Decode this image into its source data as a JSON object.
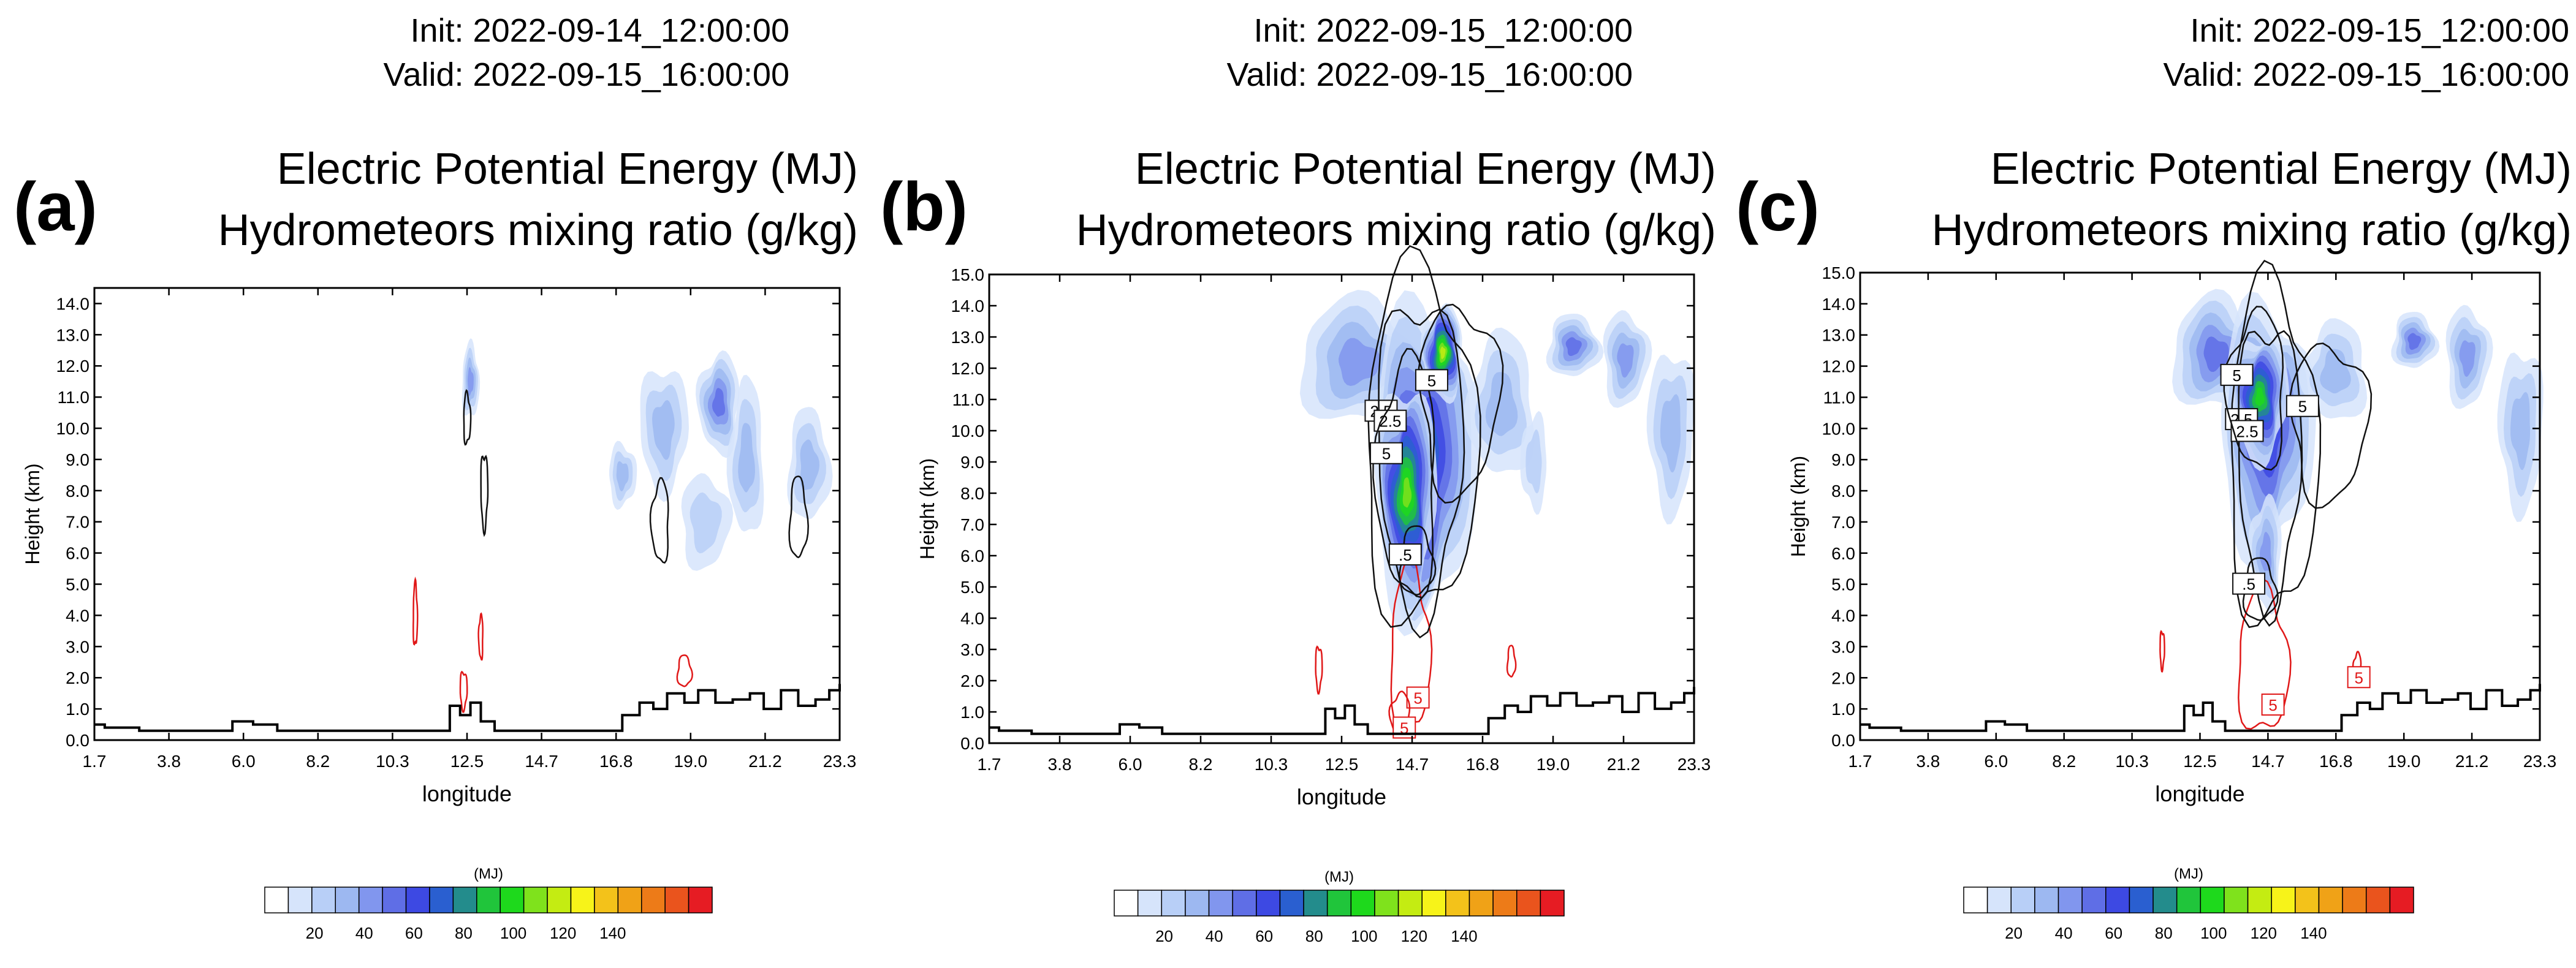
{
  "panels": [
    {
      "label": "(a)",
      "init": "Init: 2022-09-14_12:00:00",
      "valid": "Valid: 2022-09-15_16:00:00",
      "title_line1": "Electric Potential Energy (MJ)",
      "title_line2": "Hydrometeors mixing ratio (g/kg)"
    },
    {
      "label": "(b)",
      "init": "Init: 2022-09-15_12:00:00",
      "valid": "Valid: 2022-09-15_16:00:00",
      "title_line1": "Electric Potential Energy (MJ)",
      "title_line2": "Hydrometeors mixing ratio (g/kg)"
    },
    {
      "label": "(c)",
      "init": "Init: 2022-09-15_12:00:00",
      "valid": "Valid: 2022-09-15_16:00:00",
      "title_line1": "Electric Potential Energy (MJ)",
      "title_line2": "Hydrometeors mixing ratio (g/kg)"
    }
  ],
  "chart_data": [
    {
      "type": "contour",
      "panel": "a",
      "xlabel": "longitude",
      "ylabel": "Height (km)",
      "xticks": [
        "1.7",
        "3.8",
        "6.0",
        "8.2",
        "10.3",
        "12.5",
        "14.7",
        "16.8",
        "19.0",
        "21.2",
        "23.3"
      ],
      "yticks": [
        "0.0",
        "1.0",
        "2.0",
        "3.0",
        "4.0",
        "5.0",
        "6.0",
        "7.0",
        "8.0",
        "9.0",
        "10.0",
        "11.0",
        "12.0",
        "13.0",
        "14.0"
      ],
      "xlim": [
        1.7,
        23.3
      ],
      "ylim": [
        0,
        14.5
      ],
      "shaded": [
        {
          "lon": 12.6,
          "h": 11.5,
          "rx": 0.25,
          "ry": 1.2,
          "level": 4
        },
        {
          "lon": 17.0,
          "h": 8.5,
          "rx": 0.4,
          "ry": 1.0,
          "level": 3
        },
        {
          "lon": 18.2,
          "h": 10.0,
          "rx": 0.7,
          "ry": 2.0,
          "level": 3
        },
        {
          "lon": 19.8,
          "h": 10.8,
          "rx": 0.6,
          "ry": 1.6,
          "level": 5
        },
        {
          "lon": 20.6,
          "h": 9.0,
          "rx": 0.5,
          "ry": 2.5,
          "level": 3
        },
        {
          "lon": 22.4,
          "h": 8.8,
          "rx": 0.6,
          "ry": 1.8,
          "level": 3
        },
        {
          "lon": 19.4,
          "h": 7.0,
          "rx": 0.7,
          "ry": 1.5,
          "level": 2
        }
      ],
      "black_contours": [
        {
          "lon": 12.5,
          "h": 10.3,
          "rx": 0.1,
          "ry": 0.8,
          "label": ""
        },
        {
          "lon": 13.0,
          "h": 8.0,
          "rx": 0.1,
          "ry": 1.2,
          "label": ""
        },
        {
          "lon": 18.1,
          "h": 7.0,
          "rx": 0.25,
          "ry": 1.3,
          "label": ""
        },
        {
          "lon": 22.1,
          "h": 7.1,
          "rx": 0.25,
          "ry": 1.3,
          "label": ""
        }
      ],
      "red_contours": [
        {
          "lon": 11.0,
          "h": 4.0,
          "rx": 0.06,
          "ry": 1.0,
          "label": ""
        },
        {
          "lon": 12.4,
          "h": 1.6,
          "rx": 0.1,
          "ry": 0.6,
          "label": ""
        },
        {
          "lon": 12.9,
          "h": 3.3,
          "rx": 0.06,
          "ry": 0.7,
          "label": ""
        },
        {
          "lon": 18.8,
          "h": 2.2,
          "rx": 0.2,
          "ry": 0.5,
          "label": ""
        }
      ],
      "terrain": [
        [
          1.7,
          0.5
        ],
        [
          2.0,
          0.4
        ],
        [
          3.0,
          0.3
        ],
        [
          4.0,
          0.3
        ],
        [
          5.2,
          0.3
        ],
        [
          5.7,
          0.6
        ],
        [
          6.3,
          0.5
        ],
        [
          7.0,
          0.3
        ],
        [
          8.5,
          0.3
        ],
        [
          10.3,
          0.3
        ],
        [
          11.5,
          0.3
        ],
        [
          12.0,
          1.1
        ],
        [
          12.3,
          0.8
        ],
        [
          12.6,
          1.2
        ],
        [
          12.9,
          0.6
        ],
        [
          13.3,
          0.3
        ],
        [
          14.8,
          0.3
        ],
        [
          16.7,
          0.3
        ],
        [
          17.0,
          0.8
        ],
        [
          17.5,
          1.2
        ],
        [
          17.9,
          1.0
        ],
        [
          18.3,
          1.5
        ],
        [
          18.8,
          1.2
        ],
        [
          19.2,
          1.6
        ],
        [
          19.7,
          1.2
        ],
        [
          20.2,
          1.3
        ],
        [
          20.7,
          1.5
        ],
        [
          21.1,
          1.0
        ],
        [
          21.6,
          1.6
        ],
        [
          22.1,
          1.1
        ],
        [
          22.6,
          1.3
        ],
        [
          23.0,
          1.6
        ],
        [
          23.3,
          1.8
        ]
      ]
    },
    {
      "type": "contour",
      "panel": "b",
      "xlabel": "longitude",
      "ylabel": "Height (km)",
      "xticks": [
        "1.7",
        "3.8",
        "6.0",
        "8.2",
        "10.3",
        "12.5",
        "14.7",
        "16.8",
        "19.0",
        "21.2",
        "23.3"
      ],
      "yticks": [
        "0.0",
        "1.0",
        "2.0",
        "3.0",
        "4.0",
        "5.0",
        "6.0",
        "7.0",
        "8.0",
        "9.0",
        "10.0",
        "11.0",
        "12.0",
        "13.0",
        "14.0",
        "15.0"
      ],
      "xlim": [
        1.7,
        23.3
      ],
      "ylim": [
        0,
        15
      ],
      "shaded": [
        {
          "lon": 13.0,
          "h": 12.2,
          "rx": 1.8,
          "ry": 2.0,
          "level": 4
        },
        {
          "lon": 15.0,
          "h": 9.0,
          "rx": 1.6,
          "ry": 5.0,
          "level": 8
        },
        {
          "lon": 14.5,
          "h": 8.0,
          "rx": 0.9,
          "ry": 3.5,
          "level": 11
        },
        {
          "lon": 15.6,
          "h": 12.5,
          "rx": 0.6,
          "ry": 1.5,
          "level": 12
        },
        {
          "lon": 17.4,
          "h": 10.8,
          "rx": 1.0,
          "ry": 2.3,
          "level": 3
        },
        {
          "lon": 19.6,
          "h": 12.7,
          "rx": 0.8,
          "ry": 1.0,
          "level": 5
        },
        {
          "lon": 21.2,
          "h": 12.3,
          "rx": 0.7,
          "ry": 1.5,
          "level": 4
        },
        {
          "lon": 22.6,
          "h": 10.0,
          "rx": 0.7,
          "ry": 2.6,
          "level": 3
        },
        {
          "lon": 18.4,
          "h": 9.0,
          "rx": 0.4,
          "ry": 1.5,
          "level": 2
        }
      ],
      "black_contours": [
        {
          "lon": 14.9,
          "h": 9.5,
          "rx": 1.7,
          "ry": 5.6,
          "label": "2.5"
        },
        {
          "lon": 14.9,
          "h": 9.3,
          "rx": 1.3,
          "ry": 5.0,
          "label": "2.5"
        },
        {
          "lon": 14.5,
          "h": 8.5,
          "rx": 0.9,
          "ry": 3.8,
          "label": "5"
        },
        {
          "lon": 14.8,
          "h": 5.8,
          "rx": 0.5,
          "ry": 1.1,
          "label": ".5"
        },
        {
          "lon": 16.1,
          "h": 11.0,
          "rx": 1.2,
          "ry": 3.0,
          "label": "5"
        }
      ],
      "red_contours": [
        {
          "lon": 14.6,
          "h": 3.0,
          "rx": 0.6,
          "ry": 2.6,
          "label": "5"
        },
        {
          "lon": 11.8,
          "h": 2.4,
          "rx": 0.1,
          "ry": 0.7,
          "label": ""
        },
        {
          "lon": 14.3,
          "h": 0.9,
          "rx": 0.3,
          "ry": 0.7,
          "label": "5"
        },
        {
          "lon": 17.7,
          "h": 2.6,
          "rx": 0.12,
          "ry": 0.5,
          "label": ""
        }
      ],
      "terrain": [
        [
          1.7,
          0.5
        ],
        [
          2.0,
          0.4
        ],
        [
          3.0,
          0.3
        ],
        [
          4.0,
          0.3
        ],
        [
          5.2,
          0.3
        ],
        [
          5.7,
          0.6
        ],
        [
          6.3,
          0.5
        ],
        [
          7.0,
          0.3
        ],
        [
          8.5,
          0.3
        ],
        [
          10.3,
          0.3
        ],
        [
          11.5,
          0.3
        ],
        [
          12.0,
          1.1
        ],
        [
          12.3,
          0.8
        ],
        [
          12.6,
          1.2
        ],
        [
          12.9,
          0.6
        ],
        [
          13.3,
          0.3
        ],
        [
          14.8,
          0.3
        ],
        [
          16.7,
          0.3
        ],
        [
          17.0,
          0.8
        ],
        [
          17.5,
          1.2
        ],
        [
          17.9,
          1.0
        ],
        [
          18.3,
          1.5
        ],
        [
          18.8,
          1.2
        ],
        [
          19.2,
          1.6
        ],
        [
          19.7,
          1.2
        ],
        [
          20.2,
          1.3
        ],
        [
          20.7,
          1.5
        ],
        [
          21.1,
          1.0
        ],
        [
          21.6,
          1.6
        ],
        [
          22.1,
          1.1
        ],
        [
          22.6,
          1.3
        ],
        [
          23.0,
          1.6
        ],
        [
          23.3,
          1.8
        ]
      ]
    },
    {
      "type": "contour",
      "panel": "c",
      "xlabel": "longitude",
      "ylabel": "Height (km)",
      "xticks": [
        "1.7",
        "3.8",
        "6.0",
        "8.2",
        "10.3",
        "12.5",
        "14.7",
        "16.8",
        "19.0",
        "21.2",
        "23.3"
      ],
      "yticks": [
        "0.0",
        "1.0",
        "2.0",
        "3.0",
        "4.0",
        "5.0",
        "6.0",
        "7.0",
        "8.0",
        "9.0",
        "10.0",
        "11.0",
        "12.0",
        "13.0",
        "14.0",
        "15.0"
      ],
      "xlim": [
        1.7,
        23.3
      ],
      "ylim": [
        0,
        15
      ],
      "shaded": [
        {
          "lon": 13.0,
          "h": 12.4,
          "rx": 1.4,
          "ry": 1.8,
          "level": 5
        },
        {
          "lon": 14.6,
          "h": 10.0,
          "rx": 1.5,
          "ry": 4.0,
          "level": 7
        },
        {
          "lon": 14.4,
          "h": 11.0,
          "rx": 0.9,
          "ry": 2.0,
          "level": 10
        },
        {
          "lon": 14.6,
          "h": 6.0,
          "rx": 0.5,
          "ry": 1.8,
          "level": 4
        },
        {
          "lon": 16.8,
          "h": 11.8,
          "rx": 1.0,
          "ry": 1.6,
          "level": 3
        },
        {
          "lon": 19.3,
          "h": 12.8,
          "rx": 0.7,
          "ry": 0.9,
          "level": 5
        },
        {
          "lon": 21.0,
          "h": 12.3,
          "rx": 0.7,
          "ry": 1.6,
          "level": 4
        },
        {
          "lon": 22.7,
          "h": 10.0,
          "rx": 0.7,
          "ry": 2.6,
          "level": 3
        }
      ],
      "black_contours": [
        {
          "lon": 14.8,
          "h": 9.2,
          "rx": 1.4,
          "ry": 5.4,
          "label": "2.5"
        },
        {
          "lon": 14.7,
          "h": 9.0,
          "rx": 1.0,
          "ry": 4.5,
          "label": "2.5"
        },
        {
          "lon": 14.3,
          "h": 11.2,
          "rx": 0.9,
          "ry": 2.5,
          "label": "5"
        },
        {
          "lon": 14.4,
          "h": 4.8,
          "rx": 0.5,
          "ry": 1.0,
          "label": ".5"
        },
        {
          "lon": 16.6,
          "h": 10.2,
          "rx": 1.2,
          "ry": 2.5,
          "label": "5"
        }
      ],
      "red_contours": [
        {
          "lon": 14.5,
          "h": 2.5,
          "rx": 0.8,
          "ry": 2.3,
          "label": "5"
        },
        {
          "lon": 11.3,
          "h": 2.9,
          "rx": 0.07,
          "ry": 0.6,
          "label": ""
        },
        {
          "lon": 17.5,
          "h": 2.3,
          "rx": 0.12,
          "ry": 0.5,
          "label": "5"
        }
      ],
      "terrain": [
        [
          1.7,
          0.5
        ],
        [
          2.0,
          0.4
        ],
        [
          3.0,
          0.3
        ],
        [
          4.0,
          0.3
        ],
        [
          5.2,
          0.3
        ],
        [
          5.7,
          0.6
        ],
        [
          6.3,
          0.5
        ],
        [
          7.0,
          0.3
        ],
        [
          8.5,
          0.3
        ],
        [
          10.3,
          0.3
        ],
        [
          11.5,
          0.3
        ],
        [
          12.0,
          1.1
        ],
        [
          12.3,
          0.8
        ],
        [
          12.6,
          1.2
        ],
        [
          12.9,
          0.6
        ],
        [
          13.3,
          0.3
        ],
        [
          14.8,
          0.3
        ],
        [
          16.7,
          0.3
        ],
        [
          17.0,
          0.8
        ],
        [
          17.5,
          1.2
        ],
        [
          17.9,
          1.0
        ],
        [
          18.3,
          1.5
        ],
        [
          18.8,
          1.2
        ],
        [
          19.2,
          1.6
        ],
        [
          19.7,
          1.2
        ],
        [
          20.2,
          1.3
        ],
        [
          20.7,
          1.5
        ],
        [
          21.1,
          1.0
        ],
        [
          21.6,
          1.6
        ],
        [
          22.1,
          1.1
        ],
        [
          22.6,
          1.3
        ],
        [
          23.0,
          1.6
        ],
        [
          23.3,
          1.8
        ]
      ]
    }
  ],
  "colorbar": {
    "title": "(MJ)",
    "colors": [
      "#ffffff",
      "#d6e4fb",
      "#b8cff7",
      "#9db8f1",
      "#8196ee",
      "#5f6ee6",
      "#3d49e3",
      "#2a5fd0",
      "#238c8c",
      "#20c53b",
      "#1ed91c",
      "#7fe21c",
      "#c4ec12",
      "#f7f319",
      "#f3c21a",
      "#f0a217",
      "#ed7b18",
      "#ea541d",
      "#e61c23"
    ],
    "tick_labels": [
      "20",
      "40",
      "60",
      "80",
      "100",
      "120",
      "140"
    ],
    "vmin": 0,
    "vmax": 180
  }
}
